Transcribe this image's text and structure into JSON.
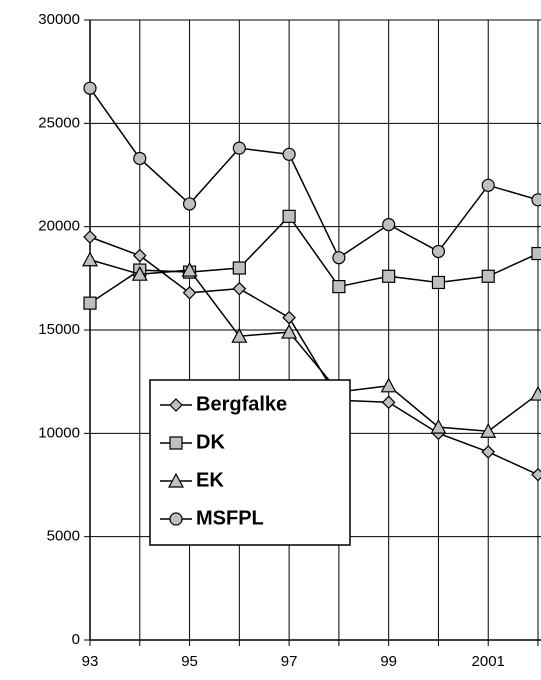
{
  "chart_data": {
    "type": "line",
    "categories": [
      "93",
      null,
      "95",
      null,
      "97",
      null,
      "99",
      null,
      "2001",
      null
    ],
    "series": [
      {
        "name": "Bergfalke",
        "color": "#000000",
        "marker": "diamond",
        "values": [
          19500,
          18600,
          16800,
          17000,
          15600,
          11600,
          11500,
          10000,
          9100,
          8000
        ]
      },
      {
        "name": "DK",
        "color": "#000000",
        "marker": "square",
        "values": [
          16300,
          17900,
          17800,
          18000,
          20500,
          17100,
          17600,
          17300,
          17600,
          18700
        ]
      },
      {
        "name": "EK",
        "color": "#000000",
        "marker": "triangle",
        "values": [
          18400,
          17700,
          17900,
          14700,
          14900,
          12000,
          12300,
          10300,
          10100,
          11900
        ]
      },
      {
        "name": "MSFPL",
        "color": "#000000",
        "marker": "circle",
        "values": [
          26700,
          23300,
          21100,
          23800,
          23500,
          18500,
          20100,
          18800,
          22000,
          21300
        ]
      }
    ],
    "ylim": [
      0,
      30000
    ],
    "yticks": [
      0,
      5000,
      10000,
      15000,
      20000,
      25000,
      30000
    ],
    "grid": true
  }
}
